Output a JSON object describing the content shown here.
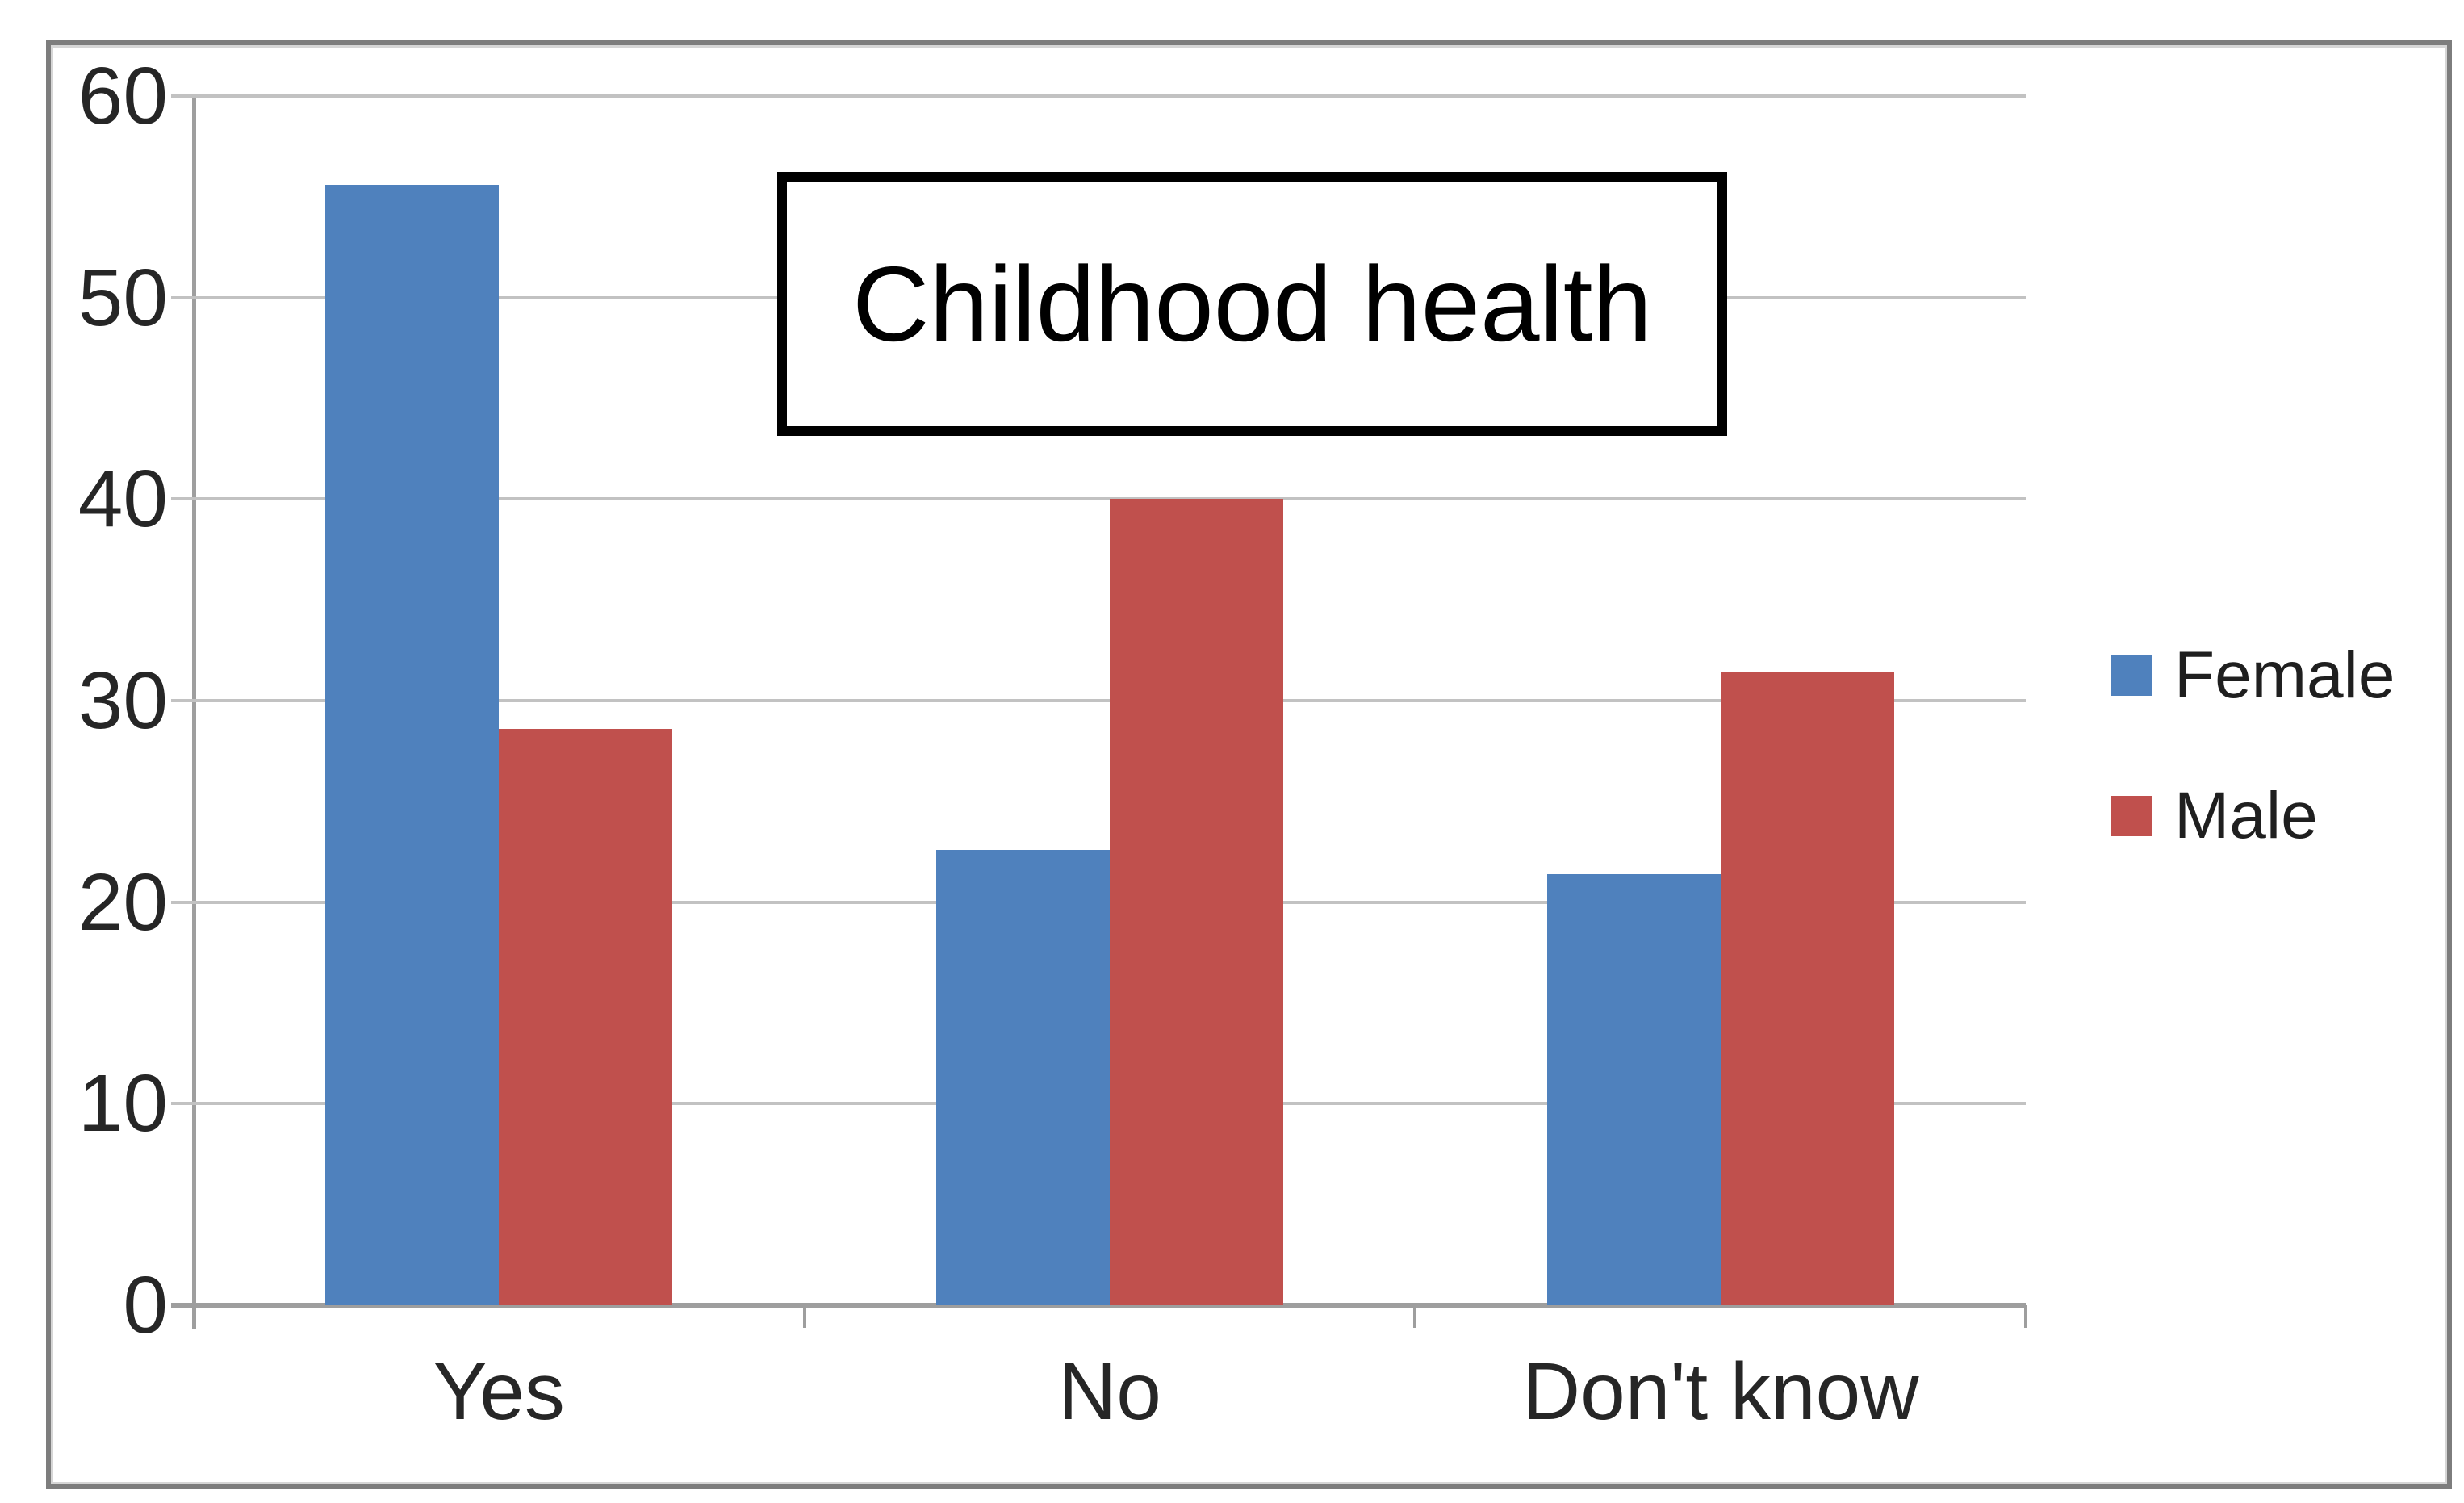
{
  "chart_data": {
    "type": "bar",
    "title": "Childhood health",
    "categories": [
      "Yes",
      "No",
      "Don't know"
    ],
    "series": [
      {
        "name": "Female",
        "color": "#4F81BD",
        "values": [
          55.6,
          22.6,
          21.4
        ]
      },
      {
        "name": "Male",
        "color": "#C0504D",
        "values": [
          28.6,
          40.0,
          31.4
        ]
      }
    ],
    "ylim": [
      0,
      60
    ],
    "yticks": [
      0,
      10,
      20,
      30,
      40,
      50,
      60
    ],
    "grid": "horizontal",
    "legend_position": "right",
    "xlabel": "",
    "ylabel": ""
  },
  "colors": {
    "female": "#4F81BD",
    "male": "#C0504D",
    "gridline": "#C2C2C2",
    "axis": "#9E9E9E",
    "frame_border": "#7D7D7D",
    "tick_text": "#262626",
    "title_text": "#000000",
    "background": "#FFFFFF"
  }
}
